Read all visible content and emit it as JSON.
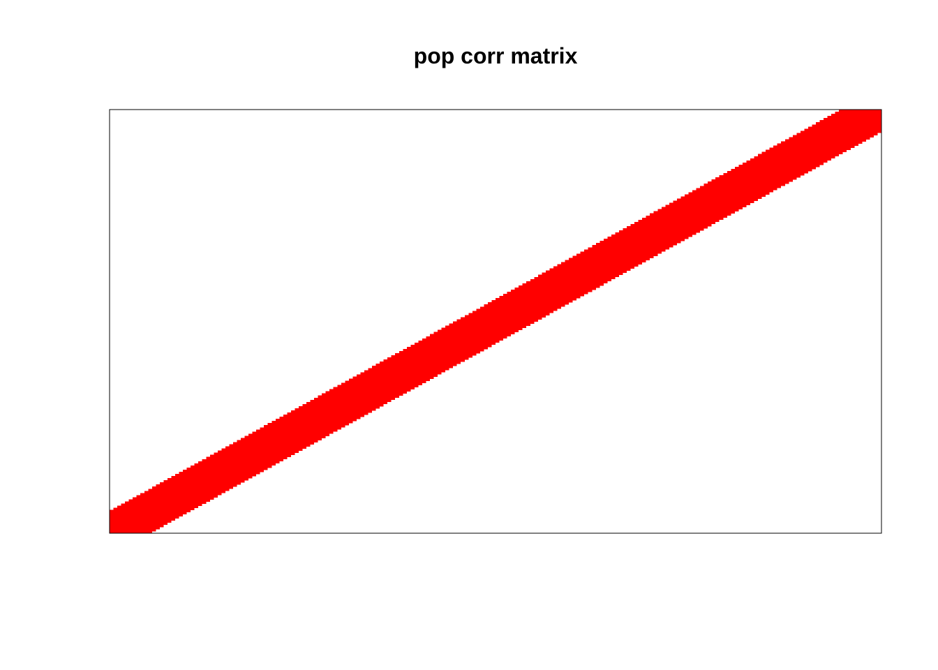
{
  "chart_data": {
    "type": "heatmap",
    "title": "pop corr matrix",
    "xlabel": "",
    "ylabel": "",
    "n": 200,
    "band_halfwidth": 10,
    "xlim": [
      0,
      1
    ],
    "ylim": [
      0,
      1
    ],
    "axes_shown": false,
    "grid": false,
    "legend": "none",
    "colors": {
      "band": "#ff0000",
      "background": "#ffffff",
      "frame": "#000000"
    }
  }
}
